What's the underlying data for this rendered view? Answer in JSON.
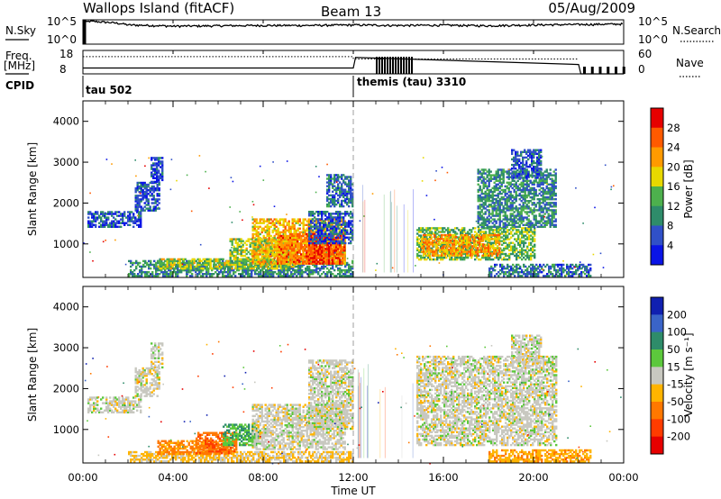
{
  "header": {
    "station": "Wallops Island (fitACF)",
    "beam": "Beam 13",
    "date": "05/Aug/2009"
  },
  "noise_panel": {
    "left_label": "N.Sky",
    "right_label": "N.Search",
    "left_ticks": [
      "10^5",
      "10^0"
    ],
    "right_ticks": [
      "10^5",
      "10^0"
    ]
  },
  "freq_panel": {
    "left_label_line1": "Freq.",
    "left_label_line2": "[MHz]",
    "left_ticks": [
      "18",
      "8"
    ],
    "right_label": "Nave",
    "right_ticks": [
      "60",
      "0"
    ],
    "cpid_label": "CPID",
    "modes": [
      {
        "name": "tau 502",
        "start_hour": 0
      },
      {
        "name": "themis (tau) 3310",
        "start_hour": 12
      }
    ]
  },
  "power_panel": {
    "ylabel": "Slant Range [km]",
    "yticks": [
      "1000",
      "2000",
      "3000",
      "4000"
    ],
    "colorbar_label": "Power [dB]",
    "colorbar_ticks": [
      "4",
      "8",
      "12",
      "16",
      "20",
      "24",
      "28"
    ],
    "colors": [
      "#0a14e6",
      "#3050c8",
      "#2e8c6a",
      "#4db04d",
      "#e8d800",
      "#ff9a00",
      "#ff5a00",
      "#e60000"
    ]
  },
  "velocity_panel": {
    "ylabel": "Slant Range [km]",
    "yticks": [
      "1000",
      "2000",
      "3000",
      "4000"
    ],
    "colorbar_label": "Velocity [m s⁻¹]",
    "colorbar_ticks": [
      "200",
      "100",
      "50",
      "15",
      "-15",
      "-50",
      "-100",
      "-200"
    ],
    "colors": [
      "#1020b0",
      "#3a64c8",
      "#2e8c6a",
      "#5cc83c",
      "#c8c8c0",
      "#ffb400",
      "#ff7800",
      "#ff3c00",
      "#e60000"
    ]
  },
  "time_axis": {
    "xlabel": "Time UT",
    "ticks": [
      "00:00",
      "04:00",
      "08:00",
      "12:00",
      "16:00",
      "20:00",
      "00:00"
    ]
  },
  "chart_data": [
    {
      "type": "line",
      "title": "N.Sky / N.Search noise",
      "yscale": "log",
      "ylim": [
        1,
        100000
      ],
      "x_hours": [
        0,
        0.3,
        2,
        4,
        6,
        8,
        10,
        12,
        14,
        16,
        18,
        20,
        22,
        24
      ],
      "sky_noise": [
        20000,
        50000,
        9000,
        5000,
        6000,
        7000,
        7000,
        9000,
        7000,
        8000,
        6000,
        9000,
        11000,
        14000
      ]
    },
    {
      "type": "line",
      "title": "Frequency / Nave",
      "freq_mhz_hours": [
        0,
        12,
        12.1,
        22,
        22.1,
        24
      ],
      "freq_mhz": [
        10.5,
        10.5,
        15,
        12,
        8,
        8
      ],
      "nave_hours": [
        0,
        12,
        22,
        24
      ],
      "nave": [
        40,
        40,
        40,
        0
      ]
    },
    {
      "type": "heatmap",
      "title": "Power",
      "x": "time (h)",
      "y": "slant range (km)",
      "xlim": [
        0,
        24
      ],
      "ylim": [
        180,
        4500
      ],
      "zlim": [
        0,
        30
      ],
      "zunit": "dB",
      "patches": [
        {
          "t0": 0.2,
          "t1": 2.6,
          "r0": 1400,
          "r1": 1800,
          "z": 6
        },
        {
          "t0": 2.3,
          "t1": 3.4,
          "r0": 1800,
          "r1": 2500,
          "z": 6
        },
        {
          "t0": 3.0,
          "t1": 3.5,
          "r0": 2500,
          "r1": 3100,
          "z": 5
        },
        {
          "t0": 2.0,
          "t1": 12.0,
          "r0": 200,
          "r1": 600,
          "z": 10
        },
        {
          "t0": 3.3,
          "t1": 9.5,
          "r0": 380,
          "r1": 620,
          "z": 16
        },
        {
          "t0": 6.5,
          "t1": 9.5,
          "r0": 600,
          "r1": 1100,
          "z": 16
        },
        {
          "t0": 7.5,
          "t1": 11.6,
          "r0": 500,
          "r1": 1600,
          "z": 20
        },
        {
          "t0": 8.6,
          "t1": 11.6,
          "r0": 500,
          "r1": 1250,
          "z": 24
        },
        {
          "t0": 10.0,
          "t1": 11.4,
          "r0": 500,
          "r1": 1250,
          "z": 28
        },
        {
          "t0": 10.0,
          "t1": 12.0,
          "r0": 1000,
          "r1": 1800,
          "z": 6
        },
        {
          "t0": 10.8,
          "t1": 12.0,
          "r0": 1900,
          "r1": 2700,
          "z": 8
        },
        {
          "t0": 14.8,
          "t1": 20.0,
          "r0": 600,
          "r1": 1400,
          "z": 14
        },
        {
          "t0": 15.0,
          "t1": 18.5,
          "r0": 700,
          "r1": 1200,
          "z": 22
        },
        {
          "t0": 17.5,
          "t1": 21.0,
          "r0": 1400,
          "r1": 2800,
          "z": 10
        },
        {
          "t0": 19.0,
          "t1": 20.3,
          "r0": 2600,
          "r1": 3300,
          "z": 6
        },
        {
          "t0": 18.0,
          "t1": 22.5,
          "r0": 200,
          "r1": 500,
          "z": 8
        }
      ]
    },
    {
      "type": "heatmap",
      "title": "Velocity",
      "x": "time (h)",
      "y": "slant range (km)",
      "xlim": [
        0,
        24
      ],
      "ylim": [
        180,
        4500
      ],
      "zlim": [
        -200,
        200
      ],
      "zunit": "m/s",
      "patches": [
        {
          "t0": 0.2,
          "t1": 2.6,
          "r0": 1400,
          "r1": 1800,
          "z": 0
        },
        {
          "t0": 2.3,
          "t1": 3.4,
          "r0": 1800,
          "r1": 2500,
          "z": 0
        },
        {
          "t0": 3.0,
          "t1": 3.5,
          "r0": 2500,
          "r1": 3100,
          "z": 0
        },
        {
          "t0": 2.0,
          "t1": 12.0,
          "r0": 200,
          "r1": 450,
          "z": -20
        },
        {
          "t0": 3.3,
          "t1": 6.5,
          "r0": 380,
          "r1": 700,
          "z": -60
        },
        {
          "t0": 5.0,
          "t1": 6.8,
          "r0": 400,
          "r1": 900,
          "z": -90
        },
        {
          "t0": 6.2,
          "t1": 7.8,
          "r0": 600,
          "r1": 1100,
          "z": 45
        },
        {
          "t0": 7.5,
          "t1": 11.6,
          "r0": 500,
          "r1": 1600,
          "z": 0
        },
        {
          "t0": 10.0,
          "t1": 12.0,
          "r0": 1000,
          "r1": 2700,
          "z": 0
        },
        {
          "t0": 14.8,
          "t1": 21.0,
          "r0": 600,
          "r1": 2800,
          "z": 0
        },
        {
          "t0": 19.0,
          "t1": 20.3,
          "r0": 2600,
          "r1": 3300,
          "z": 0
        },
        {
          "t0": 18.0,
          "t1": 22.5,
          "r0": 200,
          "r1": 500,
          "z": -40
        }
      ]
    }
  ]
}
